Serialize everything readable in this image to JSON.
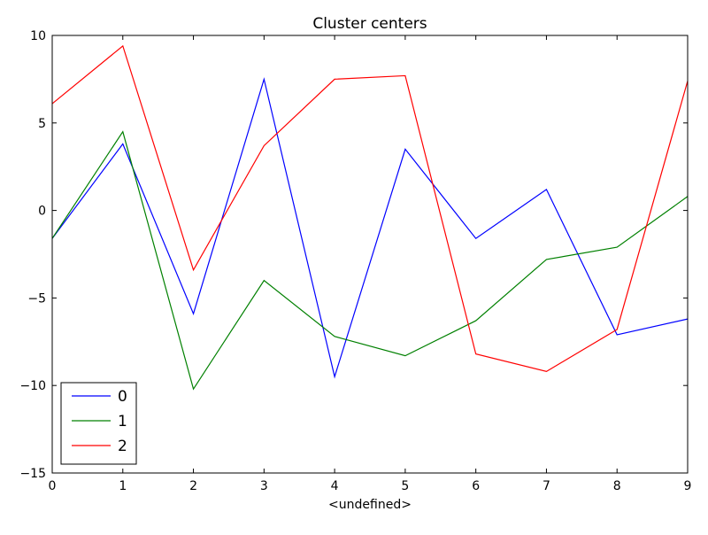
{
  "chart_data": {
    "type": "line",
    "title": "Cluster centers",
    "xlabel": "<undefined>",
    "ylabel": "",
    "xlim": [
      0,
      9
    ],
    "ylim": [
      -15,
      10
    ],
    "x": [
      0,
      1,
      2,
      3,
      4,
      5,
      6,
      7,
      8,
      9
    ],
    "xticks": [
      "0",
      "1",
      "2",
      "3",
      "4",
      "5",
      "6",
      "7",
      "8",
      "9"
    ],
    "yticks": [
      {
        "value": 10,
        "label": "10"
      },
      {
        "value": 5,
        "label": "5"
      },
      {
        "value": 0,
        "label": "0"
      },
      {
        "value": -5,
        "label": "−5"
      },
      {
        "value": -10,
        "label": "−10"
      },
      {
        "value": -15,
        "label": "−15"
      }
    ],
    "grid": false,
    "legend_position": "lower-left",
    "series": [
      {
        "name": "0",
        "color": "#0000ff",
        "values": [
          -1.6,
          3.8,
          -5.9,
          7.5,
          -9.5,
          3.5,
          -1.6,
          1.2,
          -7.1,
          -6.2
        ]
      },
      {
        "name": "1",
        "color": "#008000",
        "values": [
          -1.6,
          4.5,
          -10.2,
          -4.0,
          -7.2,
          -8.3,
          -6.3,
          -2.8,
          -2.1,
          0.8
        ]
      },
      {
        "name": "2",
        "color": "#ff0000",
        "values": [
          6.1,
          9.4,
          -3.4,
          3.7,
          7.5,
          7.7,
          -8.2,
          -9.2,
          -6.8,
          7.4
        ]
      }
    ]
  }
}
